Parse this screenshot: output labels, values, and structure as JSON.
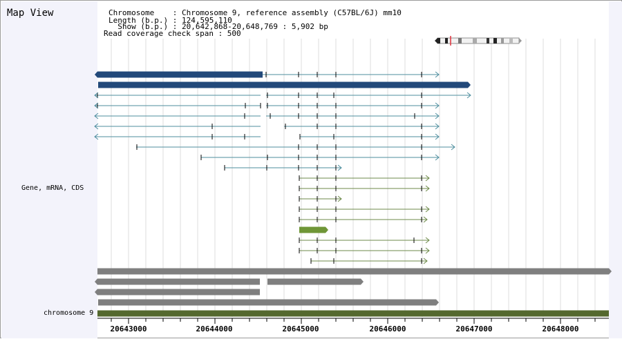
{
  "map_title": "Map View",
  "info": {
    "line1": "Chromosome    : Chromosome 9, reference assembly (C57BL/6J) mm10",
    "line2": "Length (b.p.) : 124,595,110",
    "line3": "  Show (b.p.) : 20,642,868-20,648,769 : 5,902 bp",
    "line4": "Read coverage check span : 500"
  },
  "track_labels": {
    "genes": "Gene, mRNA, CDS",
    "chromosome": "chromosome 9"
  },
  "axis": {
    "ticks": [
      "20643000",
      "20644000",
      "20645000",
      "20646000",
      "20647000",
      "20648000"
    ]
  },
  "colors": {
    "gene_dark": "#22497a",
    "mrna_teal": "#4e8e9e",
    "mrna_olive": "#6e8a4a",
    "cds_green": "#6f9637",
    "gray_bar": "#7f7f7f",
    "chromosome_bar": "#54682e"
  }
}
